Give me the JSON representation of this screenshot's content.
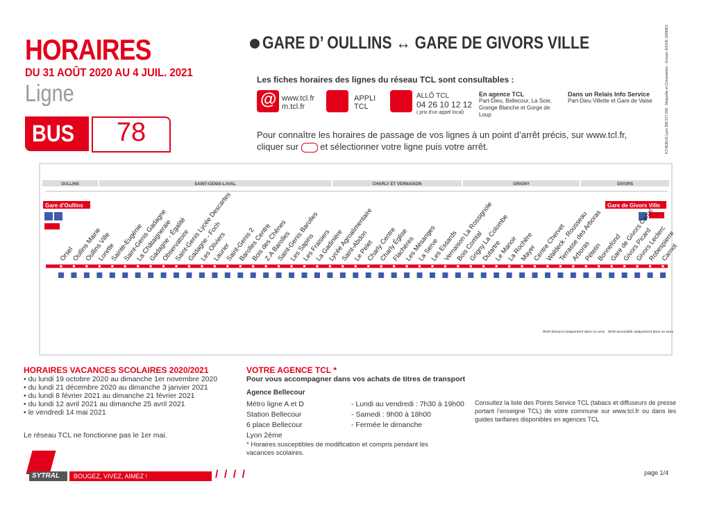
{
  "header": {
    "title": "HORAIRES",
    "period": "DU 31 AOÛT 2020 AU 4 JUIL. 2021",
    "ligne": "Ligne",
    "mode": "BUS",
    "number": "78",
    "route_from": "GARE D’ OULLINS",
    "route_to": "GARE DE GIVORS VILLE"
  },
  "info": {
    "intro": "Les fiches horaires des lignes du réseau TCL sont consultables :",
    "web": "www.tcl.fr",
    "mobile": "m.tcl.fr",
    "app": "APPLI",
    "app_name": "TCL",
    "allo": "ALLÔ TCL",
    "phone": "04 26 10 12 12",
    "phone_note": "( prix d'un appel local)",
    "agence_title": "En agence TCL",
    "agence_text": "Part-Dieu, Bellecour, La Soie, Grange Blanche et Gorge de Loup",
    "relais_title": "Dans un Relais Info Service",
    "relais_text": "Part-Dieu Villette et Gare de Vaise",
    "howto_1": "Pour connaître les horaires de passage de vos lignes à un point d’arrêt précis, sur www.tcl.fr,",
    "howto_2a": "cliquer sur",
    "howto_2b": "et sélectionner votre ligne puis votre arrêt.",
    "credits": "KS ADEUS Lyon 308 977 655 · Maquette et Composition : Groupe JOUVE GRIMES"
  },
  "map": {
    "zones": [
      "OULLINS",
      "SAINT-GENIS-LAVAL",
      "CHARLY ET VERNAISON",
      "GRIGNY",
      "GIVORS"
    ],
    "start": "Gare d’Oullins",
    "end": "Gare de Givors Ville",
    "stops": [
      "Orsel",
      "Oullins Mairie",
      "Oullins Ville",
      "Lorette",
      "Sainte-Eugénie",
      "Saint-Genis Gadagne",
      "La Châtaigneraie",
      "Gadagne - Égalité",
      "Observatoire",
      "Saint-Genis Lycée Descartes",
      "Gadagne - Foch",
      "Les Oliviers",
      "Laurier",
      "Saint-Genis 2",
      "Barolles Centre",
      "Bois des Chênes",
      "Z.A Barolles",
      "Saint-Genis Barolles",
      "Les Sapins",
      "Les Fraisiers",
      "La Gadinière",
      "Lycée Agroalimentaire",
      "Saint-Abdon",
      "Le Pelet",
      "Charly Centre",
      "Charly Église",
      "Flachères",
      "Les Mésanges",
      "La Serve",
      "Les Essards",
      "Vernaison La Rossignole",
      "Bois Comtal",
      "Grigny La Colombe",
      "Dutartre",
      "Le Manoir",
      "La Rochère",
      "Mayer",
      "Centre Chervet",
      "Waldeck - Rousseau",
      "Terrasse des Arboras",
      "Arboras",
      "Pétetin",
      "Bonnefond",
      "Gare de Givors Canal",
      "Givors Picard",
      "Givors Leclerc",
      "Robespierre",
      "Carnot"
    ],
    "legend_1": "Arrêt desservi uniquement dans ce sens",
    "legend_2": "Arrêt accessible uniquement dans ce sens"
  },
  "vacances": {
    "title": "HORAIRES VACANCES SCOLAIRES 2020/2021",
    "items": [
      "du lundi 19 octobre 2020 au dimanche 1er novembre 2020",
      "du lundi 21 décembre 2020 au dimanche 3 janvier 2021",
      "du lundi 8 février 2021 au dimanche 21 février 2021",
      "du lundi 12 avril 2021 au dimanche 25 avril 2021",
      "le vendredi 14 mai 2021"
    ],
    "note": "Le réseau TCL ne fonctionne pas le 1er mai."
  },
  "agence": {
    "title": "VOTRE AGENCE TCL *",
    "subtitle": "Pour vous accompagner dans vos achats de titres de transport",
    "name": "Agence Bellecour",
    "address": [
      "Métro ligne A et D",
      "Station Bellecour",
      "6 place Bellecour",
      "Lyon 2ème"
    ],
    "hours": [
      "- Lundi au vendredi : 7h30 à 19h00",
      "- Samedi : 9h00 à 18h00",
      "- Fermée le dimanche"
    ],
    "footnote": "* Horaires susceptibles de modification et compris pendant les vacances scolaires.",
    "points_service": "Consultez la liste des Points Service TCL (tabacs et diffuseurs de presse portant l’enseigne TCL) de votre commune sur www.tcl.fr ou dans les guides tarifaires disponibles en agences TCL"
  },
  "footer": {
    "brand": "SYTRAL",
    "slogan": "BOUGEZ, VIVEZ, AIMEZ !",
    "page": "page 1/4"
  }
}
